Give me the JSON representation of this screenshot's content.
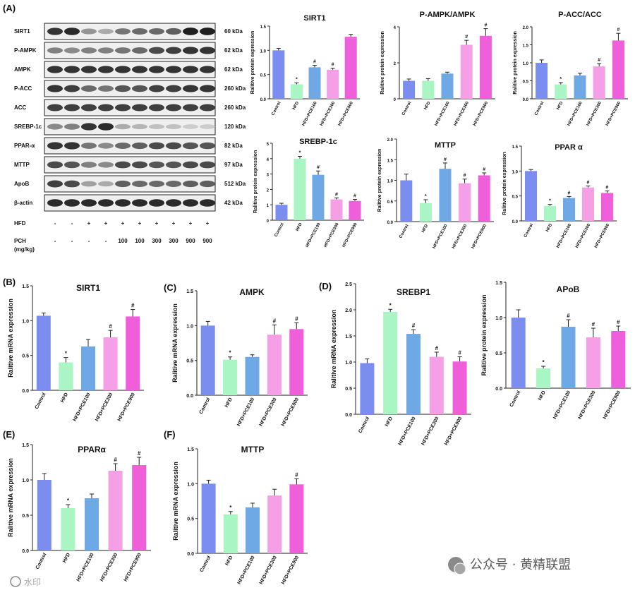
{
  "panel_labels": {
    "A": "(A)",
    "B": "(B)",
    "C": "(C)",
    "D": "(D)",
    "E": "(E)",
    "F": "(F)"
  },
  "blot": {
    "proteins": [
      {
        "name": "SIRT1",
        "kda": "60 kDa",
        "intensities": [
          0.85,
          0.9,
          0.4,
          0.3,
          0.55,
          0.6,
          0.6,
          0.65,
          0.95,
          0.95
        ]
      },
      {
        "name": "P-AMPK",
        "kda": "62 kDa",
        "intensities": [
          0.5,
          0.45,
          0.5,
          0.5,
          0.55,
          0.6,
          0.75,
          0.8,
          0.85,
          0.85
        ]
      },
      {
        "name": "AMPK",
        "kda": "62 kDa",
        "intensities": [
          0.85,
          0.85,
          0.85,
          0.85,
          0.85,
          0.85,
          0.85,
          0.85,
          0.85,
          0.85
        ]
      },
      {
        "name": "P-ACC",
        "kda": "260 kDa",
        "intensities": [
          0.85,
          0.8,
          0.6,
          0.55,
          0.7,
          0.7,
          0.8,
          0.8,
          0.85,
          0.85
        ]
      },
      {
        "name": "ACC",
        "kda": "260 kDa",
        "intensities": [
          0.8,
          0.8,
          0.8,
          0.8,
          0.8,
          0.8,
          0.8,
          0.8,
          0.8,
          0.8
        ]
      },
      {
        "name": "SREBP-1c",
        "kda": "120 kDa",
        "intensities": [
          0.45,
          0.5,
          0.85,
          0.9,
          0.3,
          0.25,
          0.2,
          0.2,
          0.15,
          0.15
        ]
      },
      {
        "name": "PPAR-α",
        "kda": "82 kDa",
        "intensities": [
          0.85,
          0.85,
          0.55,
          0.45,
          0.6,
          0.65,
          0.75,
          0.75,
          0.7,
          0.7
        ]
      },
      {
        "name": "MTTP",
        "kda": "97 kDa",
        "intensities": [
          0.75,
          0.7,
          0.5,
          0.45,
          0.75,
          0.75,
          0.7,
          0.7,
          0.75,
          0.75
        ]
      },
      {
        "name": "ApoB",
        "kda": "512 kDa",
        "intensities": [
          0.8,
          0.75,
          0.35,
          0.3,
          0.65,
          0.6,
          0.6,
          0.6,
          0.65,
          0.65
        ]
      },
      {
        "name": "β-actin",
        "kda": "42 kDa",
        "intensities": [
          0.9,
          0.9,
          0.9,
          0.9,
          0.9,
          0.9,
          0.9,
          0.9,
          0.9,
          0.9
        ]
      }
    ],
    "hfd_label": "HFD",
    "hfd_values": [
      "-",
      "-",
      "+",
      "+",
      "+",
      "+",
      "+",
      "+",
      "+",
      "+"
    ],
    "pch_label": "PCH",
    "pch_unit": "(mg/kg)",
    "pch_values": [
      "-",
      "-",
      "-",
      "-",
      "100",
      "100",
      "300",
      "300",
      "900",
      "900"
    ]
  },
  "colors": {
    "Control": "#7b8ef0",
    "HFD": "#a9f5c3",
    "HFD+PCE100": "#6ea9e6",
    "HFD+PCE300": "#f5a0e6",
    "HFD+PCE900": "#ee5fd9"
  },
  "chart_data": [
    {
      "type": "bar",
      "panel": "A",
      "title": "SIRT1",
      "ylabel": "Ralitive protein expression",
      "categories": [
        "Control",
        "HFD",
        "HFD+PCE100",
        "HFD+PCE300",
        "HFD+PCE900"
      ],
      "values": [
        1.0,
        0.3,
        0.65,
        0.6,
        1.28
      ],
      "errors": [
        0.04,
        0.03,
        0.04,
        0.03,
        0.05
      ],
      "sig": [
        "",
        "*",
        "#",
        "#",
        ""
      ],
      "ylim": [
        0,
        1.5
      ],
      "yticks": [
        0.0,
        0.5,
        1.0,
        1.5
      ]
    },
    {
      "type": "bar",
      "panel": "A",
      "title": "P-AMPK/AMPK",
      "ylabel": "Ralitive protein expression",
      "categories": [
        "Control",
        "HFD",
        "HFD+PCE100",
        "HFD+PCE300",
        "HFD+PCE900"
      ],
      "values": [
        1.0,
        1.0,
        1.4,
        3.0,
        3.5
      ],
      "errors": [
        0.1,
        0.12,
        0.08,
        0.25,
        0.4
      ],
      "sig": [
        "",
        "",
        "",
        "#",
        "#"
      ],
      "ylim": [
        0,
        4
      ],
      "yticks": [
        0,
        2,
        4
      ]
    },
    {
      "type": "bar",
      "panel": "A",
      "title": "P-ACC/ACC",
      "ylabel": "Ralitive protein expression",
      "categories": [
        "Control",
        "HFD",
        "HFD+PCE100",
        "HFD+PCE300",
        "HFD+PCE900"
      ],
      "values": [
        1.0,
        0.4,
        0.65,
        0.9,
        1.62
      ],
      "errors": [
        0.08,
        0.05,
        0.06,
        0.08,
        0.2
      ],
      "sig": [
        "",
        "*",
        "",
        "#",
        "#"
      ],
      "ylim": [
        0,
        2.0
      ],
      "yticks": [
        0.0,
        0.5,
        1.0,
        1.5,
        2.0
      ]
    },
    {
      "type": "bar",
      "panel": "A",
      "title": "SREBP-1c",
      "ylabel": "Ralitive protein expression",
      "categories": [
        "Control",
        "HFD",
        "HFD+PCE100",
        "HFD+PCE300",
        "HFD+PCE900"
      ],
      "values": [
        1.0,
        4.0,
        2.95,
        1.35,
        1.25
      ],
      "errors": [
        0.1,
        0.15,
        0.25,
        0.1,
        0.1
      ],
      "sig": [
        "",
        "*",
        "#",
        "#",
        "#"
      ],
      "ylim": [
        0,
        5
      ],
      "yticks": [
        0,
        1,
        2,
        3,
        4,
        5
      ]
    },
    {
      "type": "bar",
      "panel": "A",
      "title": "MTTP",
      "ylabel": "Ralitive protein expression",
      "categories": [
        "Control",
        "HFD",
        "HFD+PCE100",
        "HFD+PCE300",
        "HFD+PCE900"
      ],
      "values": [
        1.0,
        0.45,
        1.28,
        0.93,
        1.12
      ],
      "errors": [
        0.15,
        0.08,
        0.14,
        0.1,
        0.06
      ],
      "sig": [
        "",
        "*",
        "#",
        "#",
        "#"
      ],
      "ylim": [
        0,
        2.0
      ],
      "yticks": [
        0.0,
        0.5,
        1.0,
        1.5,
        2.0
      ]
    },
    {
      "type": "bar",
      "panel": "A",
      "title": "PPAR α",
      "ylabel": "Ralitive protein expression",
      "categories": [
        "Control",
        "HFD",
        "HFD+PCE100",
        "HFD+PCE300",
        "HFD+PCE900"
      ],
      "values": [
        1.0,
        0.3,
        0.46,
        0.67,
        0.56
      ],
      "errors": [
        0.03,
        0.03,
        0.03,
        0.03,
        0.04
      ],
      "sig": [
        "",
        "*",
        "#",
        "#",
        "#"
      ],
      "ylim": [
        0,
        1.5
      ],
      "yticks": [
        0.0,
        0.5,
        1.0,
        1.5
      ]
    },
    {
      "type": "bar",
      "panel": "B",
      "title": "SIRT1",
      "ylabel": "Ralitive mRNA expression",
      "categories": [
        "Control",
        "HFD",
        "HFD+PCE100",
        "HFD+PCE300",
        "HFD+PCE900"
      ],
      "values": [
        1.07,
        0.4,
        0.63,
        0.76,
        1.06
      ],
      "errors": [
        0.04,
        0.07,
        0.1,
        0.1,
        0.1
      ],
      "sig": [
        "",
        "*",
        "",
        "#",
        "#"
      ],
      "ylim": [
        0,
        1.5
      ],
      "yticks": [
        0.0,
        0.5,
        1.0,
        1.5
      ]
    },
    {
      "type": "bar",
      "panel": "C",
      "title": "AMPK",
      "ylabel": "Ralitive mRNA expression",
      "categories": [
        "Control",
        "HFD",
        "HFD+PCE100",
        "HFD+PCE300",
        "HFD+PCE900"
      ],
      "values": [
        1.0,
        0.51,
        0.55,
        0.87,
        0.95
      ],
      "errors": [
        0.06,
        0.04,
        0.03,
        0.14,
        0.09
      ],
      "sig": [
        "",
        "*",
        "",
        "#",
        "#"
      ],
      "ylim": [
        0,
        1.5
      ],
      "yticks": [
        0.0,
        0.5,
        1.0,
        1.5
      ]
    },
    {
      "type": "bar",
      "panel": "D",
      "title": "SREBP1",
      "ylabel": "Ralitive mRNA expression",
      "categories": [
        "Control",
        "HFD",
        "HFD+PCE100",
        "HFD+PCE300",
        "HFD+PCE900"
      ],
      "values": [
        0.98,
        1.96,
        1.54,
        1.1,
        1.01
      ],
      "errors": [
        0.08,
        0.05,
        0.08,
        0.09,
        0.09
      ],
      "sig": [
        "",
        "*",
        "#",
        "#",
        "#"
      ],
      "ylim": [
        0,
        2.5
      ],
      "yticks": [
        0.0,
        0.5,
        1.0,
        1.5,
        2.0,
        2.5
      ]
    },
    {
      "type": "bar",
      "panel": "D",
      "title": "APoB",
      "ylabel": "Ralitive protein expression",
      "categories": [
        "Control",
        "HFD",
        "HFD+PCE100",
        "HFD+PCE300",
        "HFD+PCE900"
      ],
      "values": [
        1.0,
        0.28,
        0.87,
        0.72,
        0.81
      ],
      "errors": [
        0.11,
        0.03,
        0.1,
        0.13,
        0.07
      ],
      "sig": [
        "",
        "*",
        "#",
        "#",
        "#"
      ],
      "ylim": [
        0,
        1.5
      ],
      "yticks": [
        0.0,
        0.5,
        1.0,
        1.5
      ]
    },
    {
      "type": "bar",
      "panel": "E",
      "title": "PPARα",
      "ylabel": "Ralitive mRNA expression",
      "categories": [
        "Control",
        "HFD",
        "HFD+PCE100",
        "HFD+PCE300",
        "HFD+PCE900"
      ],
      "values": [
        1.0,
        0.6,
        0.74,
        1.13,
        1.21
      ],
      "errors": [
        0.09,
        0.05,
        0.06,
        0.1,
        0.11
      ],
      "sig": [
        "",
        "*",
        "",
        "#",
        "#"
      ],
      "ylim": [
        0,
        1.5
      ],
      "yticks": [
        0.0,
        0.5,
        1.0,
        1.5
      ]
    },
    {
      "type": "bar",
      "panel": "F",
      "title": "MTTP",
      "ylabel": "Ralitive mRNA expression",
      "categories": [
        "Control",
        "HFD",
        "HFD+PCE100",
        "HFD+PCE300",
        "HFD+PCE900"
      ],
      "values": [
        1.0,
        0.56,
        0.66,
        0.83,
        0.99
      ],
      "errors": [
        0.05,
        0.04,
        0.06,
        0.09,
        0.08
      ],
      "sig": [
        "",
        "*",
        "",
        "",
        "#"
      ],
      "ylim": [
        0,
        1.5
      ],
      "yticks": [
        0.0,
        0.5,
        1.0,
        1.5
      ]
    }
  ],
  "watermark": {
    "left": "水印",
    "right": "公众号 · 黄精联盟"
  }
}
